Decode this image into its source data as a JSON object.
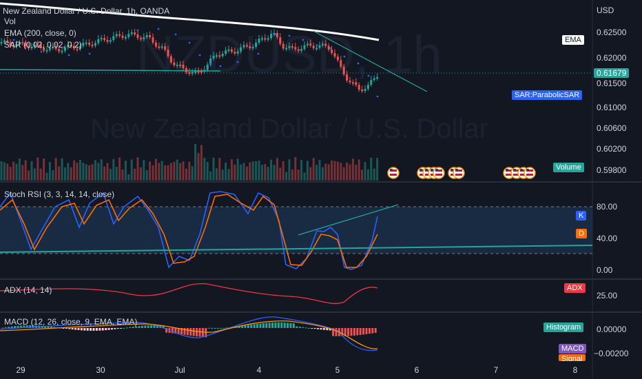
{
  "title_line": "New Zealand Dollar / U.S. Dollar, 1h, OANDA",
  "indicators_main": [
    "Vol",
    "EMA (200, close, 0)",
    "SAR (0.02, 0.02, 0.2)"
  ],
  "watermark_symbol": "NZDUSD, 1h",
  "watermark_name": "New Zealand Dollar / U.S. Dollar",
  "currency": "USD",
  "price_axis": [
    "0.62500",
    "0.62000",
    "0.61500",
    "0.61000",
    "0.60600",
    "0.60200",
    "0.59800"
  ],
  "last_price": "0.61679",
  "badges": {
    "ema": "EMA",
    "sar": "SAR:ParabolicSAR",
    "volume": "Volume",
    "k": "K",
    "d": "D",
    "adx": "ADX",
    "hist": "Histogram",
    "macd": "MACD",
    "signal": "Signal"
  },
  "stoch": {
    "title": "Stoch RSI (3, 3, 14, 14, close)",
    "axis": [
      "80.00",
      "40.00",
      "0.00"
    ]
  },
  "adx": {
    "title": "ADX (14, 14)",
    "axis": [
      "25.00"
    ]
  },
  "macd": {
    "title": "MACD (12, 26, close, 9, EMA, EMA)",
    "axis": [
      "0.00000",
      "−0.00200"
    ]
  },
  "time_axis": [
    "29",
    "30",
    "Jul",
    "4",
    "5",
    "6",
    "7",
    "8"
  ],
  "colors": {
    "bg": "#131722",
    "up": "#26a69a",
    "down": "#ef5350",
    "ema": "#ffffff",
    "sar": "#2962ff",
    "k": "#2962ff",
    "d": "#ff6d00",
    "adx": "#f23645",
    "macd_badge": "#7e57c2",
    "signal_badge": "#ff6d00",
    "trend": "#26a69a"
  }
}
